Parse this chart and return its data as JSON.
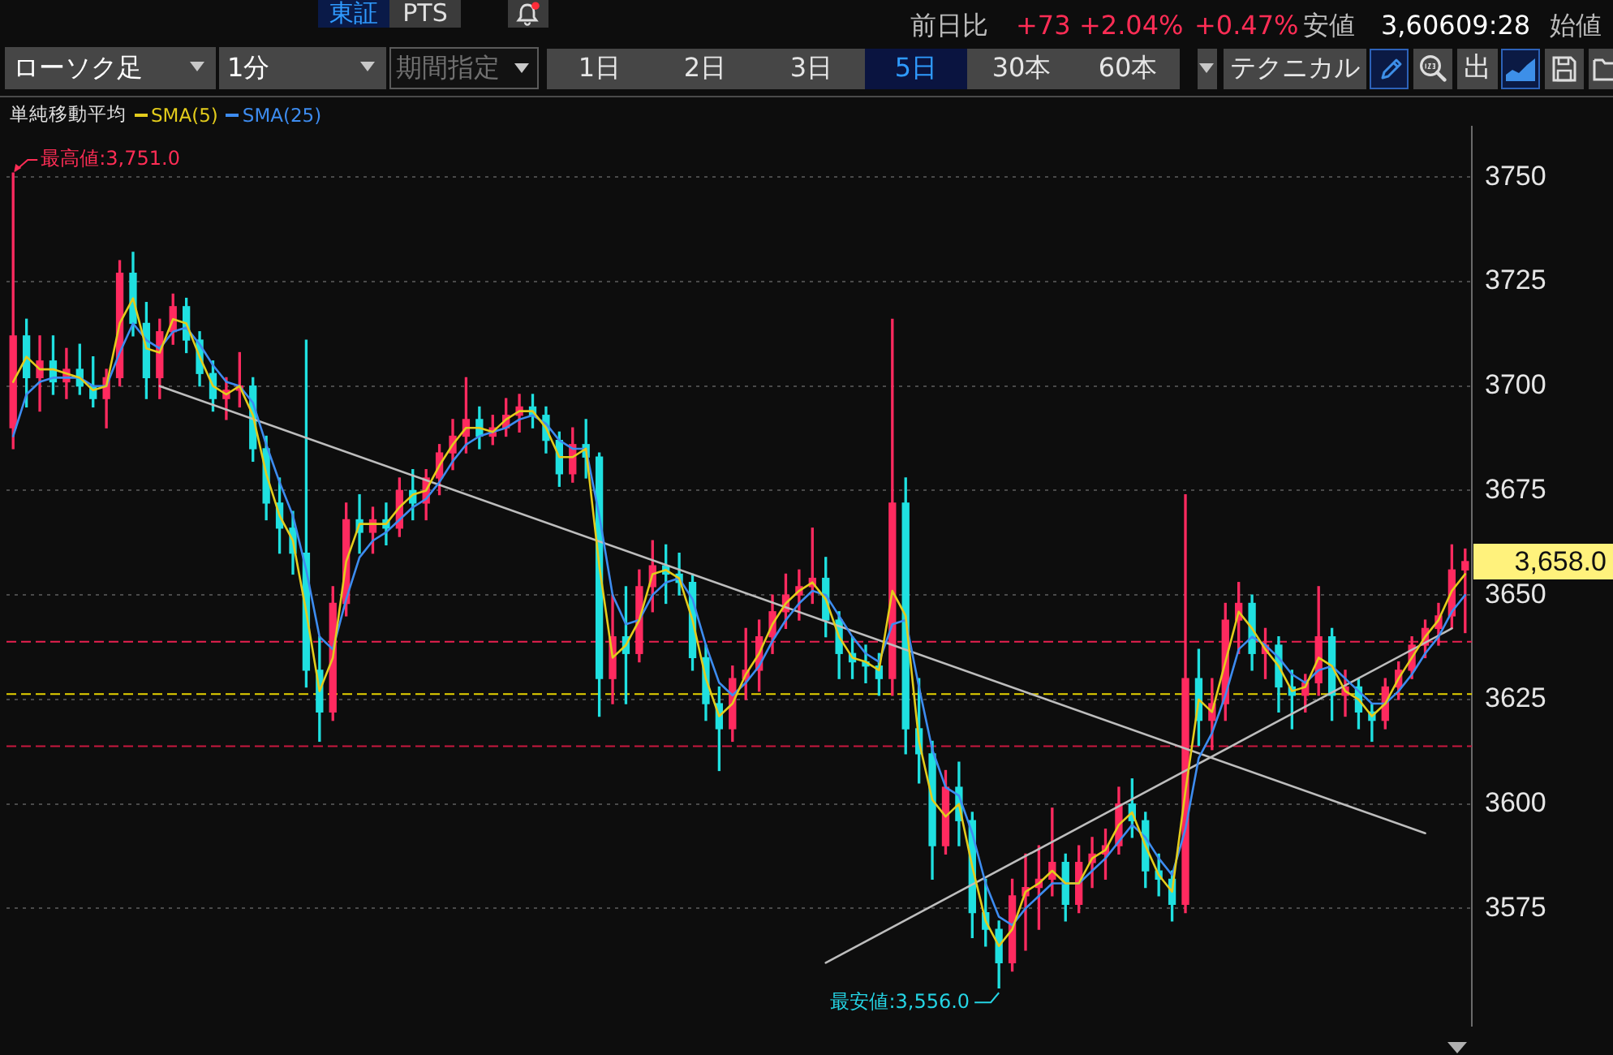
{
  "chart_data": {
    "type": "candlestick",
    "categories": [
      null,
      null,
      null,
      null,
      null,
      null,
      null,
      null,
      null,
      null,
      null,
      null,
      null,
      null,
      null,
      null,
      null,
      null,
      null,
      null,
      null,
      null,
      null,
      null,
      null,
      null,
      null,
      null,
      null,
      null,
      null,
      null,
      null,
      null,
      null,
      null,
      null,
      null,
      null,
      null,
      null,
      null,
      null,
      null,
      null,
      null,
      null,
      null,
      null,
      null,
      null,
      null,
      null,
      null,
      null,
      null,
      null,
      null,
      null,
      null,
      null,
      null,
      null,
      null,
      null,
      null,
      null,
      null,
      null,
      null,
      null,
      null,
      null,
      null,
      null,
      null,
      null,
      null,
      null,
      null,
      null,
      null,
      null,
      null,
      null,
      null,
      null,
      null,
      null,
      null,
      null,
      null,
      null,
      null,
      null,
      null,
      null,
      null,
      null,
      null,
      null,
      null,
      null,
      null,
      null,
      null,
      null,
      null,
      null,
      null
    ],
    "ohlc": [
      [
        3690,
        3751,
        3685,
        3712
      ],
      [
        3712,
        3716,
        3695,
        3702
      ],
      [
        3702,
        3712,
        3694,
        3706
      ],
      [
        3706,
        3712,
        3698,
        3701
      ],
      [
        3701,
        3709,
        3697,
        3704
      ],
      [
        3704,
        3710,
        3698,
        3700
      ],
      [
        3700,
        3707,
        3695,
        3697
      ],
      [
        3697,
        3704,
        3690,
        3702
      ],
      [
        3702,
        3730,
        3700,
        3727
      ],
      [
        3727,
        3732,
        3712,
        3715
      ],
      [
        3715,
        3720,
        3697,
        3702
      ],
      [
        3702,
        3716,
        3697,
        3713
      ],
      [
        3713,
        3722,
        3710,
        3719
      ],
      [
        3719,
        3721,
        3708,
        3711
      ],
      [
        3711,
        3713,
        3700,
        3703
      ],
      [
        3703,
        3706,
        3694,
        3697
      ],
      [
        3697,
        3702,
        3692,
        3699
      ],
      [
        3699,
        3708,
        3695,
        3700
      ],
      [
        3700,
        3702,
        3682,
        3685
      ],
      [
        3685,
        3688,
        3668,
        3672
      ],
      [
        3672,
        3678,
        3660,
        3666
      ],
      [
        3666,
        3670,
        3655,
        3660
      ],
      [
        3660,
        3711,
        3628,
        3632
      ],
      [
        3632,
        3640,
        3615,
        3622
      ],
      [
        3622,
        3652,
        3620,
        3648
      ],
      [
        3648,
        3672,
        3645,
        3668
      ],
      [
        3668,
        3674,
        3660,
        3665
      ],
      [
        3665,
        3671,
        3660,
        3668
      ],
      [
        3668,
        3672,
        3662,
        3666
      ],
      [
        3666,
        3678,
        3664,
        3675
      ],
      [
        3675,
        3680,
        3668,
        3672
      ],
      [
        3672,
        3680,
        3668,
        3678
      ],
      [
        3678,
        3686,
        3674,
        3684
      ],
      [
        3684,
        3692,
        3680,
        3688
      ],
      [
        3688,
        3702,
        3684,
        3692
      ],
      [
        3692,
        3695,
        3685,
        3688
      ],
      [
        3688,
        3693,
        3686,
        3690
      ],
      [
        3690,
        3697,
        3688,
        3693
      ],
      [
        3693,
        3698,
        3689,
        3695
      ],
      [
        3695,
        3698,
        3690,
        3693
      ],
      [
        3693,
        3695,
        3684,
        3687
      ],
      [
        3687,
        3689,
        3676,
        3679
      ],
      [
        3679,
        3690,
        3677,
        3686
      ],
      [
        3686,
        3692,
        3678,
        3683
      ],
      [
        3683,
        3684,
        3621,
        3630
      ],
      [
        3630,
        3650,
        3624,
        3640
      ],
      [
        3640,
        3652,
        3624,
        3636
      ],
      [
        3636,
        3656,
        3634,
        3652
      ],
      [
        3652,
        3663,
        3646,
        3657
      ],
      [
        3657,
        3662,
        3648,
        3655
      ],
      [
        3655,
        3660,
        3650,
        3653
      ],
      [
        3653,
        3655,
        3632,
        3635
      ],
      [
        3635,
        3638,
        3620,
        3624
      ],
      [
        3624,
        3628,
        3608,
        3618
      ],
      [
        3618,
        3633,
        3615,
        3630
      ],
      [
        3630,
        3642,
        3625,
        3632
      ],
      [
        3632,
        3644,
        3627,
        3640
      ],
      [
        3640,
        3650,
        3636,
        3646
      ],
      [
        3646,
        3655,
        3642,
        3650
      ],
      [
        3650,
        3656,
        3644,
        3652
      ],
      [
        3652,
        3666,
        3648,
        3654
      ],
      [
        3654,
        3659,
        3640,
        3644
      ],
      [
        3644,
        3646,
        3630,
        3636
      ],
      [
        3636,
        3640,
        3630,
        3634
      ],
      [
        3634,
        3638,
        3629,
        3633
      ],
      [
        3633,
        3636,
        3626,
        3630
      ],
      [
        3630,
        3716,
        3626,
        3672
      ],
      [
        3672,
        3678,
        3612,
        3618
      ],
      [
        3618,
        3630,
        3605,
        3612
      ],
      [
        3612,
        3615,
        3582,
        3590
      ],
      [
        3590,
        3608,
        3588,
        3604
      ],
      [
        3604,
        3610,
        3590,
        3596
      ],
      [
        3596,
        3598,
        3568,
        3574
      ],
      [
        3574,
        3582,
        3566,
        3570
      ],
      [
        3570,
        3572,
        3556,
        3562
      ],
      [
        3562,
        3582,
        3560,
        3578
      ],
      [
        3578,
        3588,
        3565,
        3580
      ],
      [
        3580,
        3590,
        3570,
        3582
      ],
      [
        3582,
        3599,
        3578,
        3586
      ],
      [
        3586,
        3588,
        3572,
        3576
      ],
      [
        3576,
        3590,
        3574,
        3586
      ],
      [
        3586,
        3592,
        3580,
        3588
      ],
      [
        3588,
        3594,
        3582,
        3590
      ],
      [
        3590,
        3604,
        3588,
        3600
      ],
      [
        3600,
        3606,
        3592,
        3596
      ],
      [
        3596,
        3598,
        3580,
        3584
      ],
      [
        3584,
        3588,
        3578,
        3582
      ],
      [
        3582,
        3584,
        3572,
        3576
      ],
      [
        3576,
        3674,
        3574,
        3630
      ],
      [
        3630,
        3637,
        3614,
        3620
      ],
      [
        3620,
        3630,
        3613,
        3624
      ],
      [
        3624,
        3648,
        3620,
        3644
      ],
      [
        3644,
        3653,
        3636,
        3648
      ],
      [
        3648,
        3650,
        3632,
        3636
      ],
      [
        3636,
        3642,
        3630,
        3638
      ],
      [
        3638,
        3640,
        3622,
        3628
      ],
      [
        3628,
        3632,
        3618,
        3626
      ],
      [
        3626,
        3631,
        3622,
        3629
      ],
      [
        3629,
        3652,
        3626,
        3640
      ],
      [
        3640,
        3642,
        3620,
        3626
      ],
      [
        3626,
        3632,
        3621,
        3628
      ],
      [
        3628,
        3630,
        3618,
        3622
      ],
      [
        3622,
        3624,
        3615,
        3620
      ],
      [
        3620,
        3630,
        3618,
        3628
      ],
      [
        3628,
        3634,
        3625,
        3632
      ],
      [
        3632,
        3640,
        3630,
        3638
      ],
      [
        3638,
        3644,
        3635,
        3642
      ],
      [
        3642,
        3648,
        3638,
        3645
      ],
      [
        3645,
        3662,
        3642,
        3656
      ],
      [
        3656,
        3661,
        3641,
        3658
      ]
    ],
    "colors": [
      "#ff2a5f",
      "#1fe0e0",
      "#ff2a5f",
      "#1fe0e0",
      "#ff2a5f",
      "#1fe0e0",
      "#1fe0e0",
      "#ff2a5f",
      "#ff2a5f",
      "#1fe0e0",
      "#1fe0e0",
      "#ff2a5f",
      "#ff2a5f",
      "#1fe0e0",
      "#1fe0e0",
      "#1fe0e0",
      "#ff2a5f",
      "#ff2a5f",
      "#1fe0e0",
      "#1fe0e0",
      "#1fe0e0",
      "#1fe0e0",
      "#1fe0e0",
      "#1fe0e0",
      "#ff2a5f",
      "#ff2a5f",
      "#1fe0e0",
      "#ff2a5f",
      "#1fe0e0",
      "#ff2a5f",
      "#1fe0e0",
      "#ff2a5f",
      "#ff2a5f",
      "#ff2a5f",
      "#ff2a5f",
      "#1fe0e0",
      "#ff2a5f",
      "#ff2a5f",
      "#ff2a5f",
      "#1fe0e0",
      "#1fe0e0",
      "#1fe0e0",
      "#ff2a5f",
      "#1fe0e0",
      "#1fe0e0",
      "#ff2a5f",
      "#1fe0e0",
      "#ff2a5f",
      "#ff2a5f",
      "#1fe0e0",
      "#1fe0e0",
      "#1fe0e0",
      "#1fe0e0",
      "#1fe0e0",
      "#ff2a5f",
      "#ff2a5f",
      "#ff2a5f",
      "#ff2a5f",
      "#ff2a5f",
      "#ff2a5f",
      "#ff2a5f",
      "#1fe0e0",
      "#1fe0e0",
      "#1fe0e0",
      "#1fe0e0",
      "#1fe0e0",
      "#ff2a5f",
      "#1fe0e0",
      "#1fe0e0",
      "#1fe0e0",
      "#ff2a5f",
      "#1fe0e0",
      "#1fe0e0",
      "#1fe0e0",
      "#1fe0e0",
      "#ff2a5f",
      "#ff2a5f",
      "#ff2a5f",
      "#ff2a5f",
      "#1fe0e0",
      "#ff2a5f",
      "#ff2a5f",
      "#ff2a5f",
      "#ff2a5f",
      "#1fe0e0",
      "#1fe0e0",
      "#1fe0e0",
      "#1fe0e0",
      "#ff2a5f",
      "#1fe0e0",
      "#ff2a5f",
      "#ff2a5f",
      "#ff2a5f",
      "#1fe0e0",
      "#ff2a5f",
      "#1fe0e0",
      "#1fe0e0",
      "#ff2a5f",
      "#ff2a5f",
      "#1fe0e0",
      "#ff2a5f",
      "#1fe0e0",
      "#1fe0e0",
      "#ff2a5f",
      "#ff2a5f",
      "#ff2a5f",
      "#ff2a5f",
      "#ff2a5f",
      "#ff2a5f",
      "#ff2a5f"
    ],
    "series": [
      {
        "type": "line",
        "name": "SMA(5)",
        "color": "#e3cc1c",
        "values": [
          3701,
          3707,
          3704,
          3704,
          3703,
          3702,
          3699,
          3700,
          3715,
          3721,
          3709,
          3708,
          3716,
          3715,
          3707,
          3700,
          3698,
          3700,
          3693,
          3679,
          3669,
          3663,
          3646,
          3627,
          3635,
          3658,
          3667,
          3667,
          3667,
          3671,
          3674,
          3675,
          3681,
          3686,
          3690,
          3690,
          3689,
          3692,
          3694,
          3694,
          3690,
          3683,
          3683,
          3685,
          3657,
          3635,
          3638,
          3644,
          3655,
          3656,
          3654,
          3644,
          3630,
          3621,
          3624,
          3631,
          3636,
          3643,
          3648,
          3651,
          3653,
          3649,
          3640,
          3635,
          3634,
          3632,
          3651,
          3645,
          3615,
          3601,
          3597,
          3600,
          3585,
          3572,
          3566,
          3570,
          3579,
          3581,
          3584,
          3581,
          3581,
          3587,
          3589,
          3595,
          3598,
          3590,
          3583,
          3579,
          3603,
          3625,
          3622,
          3634,
          3646,
          3642,
          3637,
          3633,
          3627,
          3628,
          3635,
          3633,
          3627,
          3625,
          3621,
          3624,
          3630,
          3635,
          3640,
          3644,
          3651,
          3655
        ]
      },
      {
        "type": "line",
        "name": "SMA(25)",
        "color": "#3d8cf0",
        "values": [
          3688,
          3698,
          3701,
          3702,
          3702,
          3702,
          3700,
          3700,
          3708,
          3715,
          3711,
          3709,
          3713,
          3714,
          3710,
          3705,
          3701,
          3700,
          3696,
          3686,
          3677,
          3669,
          3656,
          3640,
          3637,
          3649,
          3659,
          3663,
          3665,
          3668,
          3671,
          3673,
          3677,
          3682,
          3686,
          3688,
          3689,
          3690,
          3692,
          3693,
          3691,
          3687,
          3685,
          3685,
          3669,
          3650,
          3643,
          3644,
          3650,
          3653,
          3654,
          3649,
          3638,
          3629,
          3626,
          3629,
          3633,
          3639,
          3644,
          3648,
          3651,
          3650,
          3645,
          3640,
          3636,
          3634,
          3643,
          3644,
          3628,
          3613,
          3604,
          3602,
          3593,
          3581,
          3573,
          3571,
          3575,
          3578,
          3581,
          3581,
          3581,
          3584,
          3587,
          3591,
          3595,
          3592,
          3587,
          3583,
          3594,
          3611,
          3617,
          3626,
          3637,
          3640,
          3638,
          3635,
          3631,
          3629,
          3632,
          3633,
          3630,
          3627,
          3624,
          3624,
          3627,
          3631,
          3636,
          3640,
          3646,
          3650
        ]
      },
      {
        "type": "line",
        "color": "#bdbdbd",
        "values": [
          null,
          null,
          null,
          null,
          null,
          null,
          null,
          null,
          null,
          null,
          null,
          3700,
          null,
          null,
          null,
          null,
          null,
          null,
          null,
          null,
          null,
          null,
          null,
          null,
          null,
          null,
          null,
          null,
          null,
          null,
          null,
          null,
          null,
          null,
          null,
          null,
          null,
          null,
          null,
          null,
          null,
          null,
          null,
          null,
          null,
          null,
          null,
          null,
          null,
          null,
          null,
          null,
          null,
          null,
          null,
          null,
          null,
          null,
          null,
          null,
          null,
          null,
          null,
          null,
          null,
          null,
          null,
          null,
          null,
          null,
          null,
          null,
          null,
          null,
          null,
          null,
          null,
          null,
          null,
          null,
          null,
          null,
          null,
          null,
          null,
          null,
          null,
          null,
          null,
          null,
          null,
          null,
          null,
          null,
          null,
          null,
          null,
          null,
          null,
          null,
          null,
          null,
          null,
          null,
          null,
          null,
          3593,
          null,
          null,
          null
        ]
      },
      {
        "type": "line",
        "color": "#bdbdbd",
        "values": [
          null,
          null,
          null,
          null,
          null,
          null,
          null,
          null,
          null,
          null,
          null,
          null,
          null,
          null,
          null,
          null,
          null,
          null,
          null,
          null,
          null,
          null,
          null,
          null,
          null,
          null,
          null,
          null,
          null,
          null,
          null,
          null,
          null,
          null,
          null,
          null,
          null,
          null,
          null,
          null,
          null,
          null,
          null,
          null,
          null,
          null,
          null,
          null,
          null,
          null,
          null,
          null,
          null,
          null,
          null,
          null,
          null,
          null,
          null,
          null,
          null,
          3562,
          null,
          null,
          null,
          null,
          null,
          null,
          null,
          null,
          null,
          null,
          null,
          null,
          null,
          null,
          null,
          null,
          null,
          null,
          null,
          null,
          null,
          null,
          null,
          null,
          null,
          null,
          null,
          null,
          null,
          null,
          null,
          null,
          null,
          null,
          null,
          null,
          null,
          null,
          null,
          null,
          null,
          null,
          null,
          null,
          null,
          null,
          3642,
          null
        ]
      }
    ],
    "legend_title": "単純移動平均",
    "legend": "top left",
    "ylim": [
      3547,
      3762
    ],
    "yticks": [
      3575,
      3600,
      3625,
      3650,
      3675,
      3700,
      3725,
      3750
    ],
    "grid": "y",
    "tick_labels": "y",
    "ref_lines": [
      {
        "axis": "y",
        "value": 3639,
        "color": "#e8204f",
        "line_style": "dashed"
      },
      {
        "axis": "y",
        "value": 3626.5,
        "color": "#e6d200",
        "line_style": "dashed"
      },
      {
        "axis": "y",
        "value": 3614,
        "color": "#c8183f",
        "line_style": "dashed"
      }
    ],
    "annotations": [
      "東証",
      "PTS",
      "前日比",
      "+73",
      "+2.04%",
      "+0.47%",
      "安値",
      "3,606",
      "09:28",
      "始値",
      "ローソク足",
      "1分",
      "期間指定",
      "1日",
      "2日",
      "3日",
      "5日",
      "30本",
      "60本",
      "テクニカル",
      "出",
      "最高値:3,751.0",
      "最安値:3,556.0",
      "3,658.0"
    ]
  }
}
